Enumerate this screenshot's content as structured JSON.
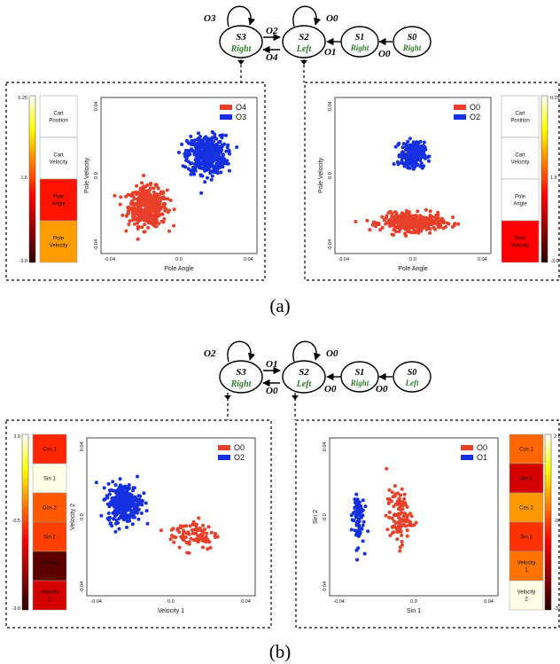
{
  "captions": {
    "a": "(a)",
    "b": "(b)"
  },
  "colors": {
    "action": "#2e7d2e",
    "red": "#e8402a",
    "blue": "#1530e0"
  },
  "fig_a": {
    "graph": {
      "s3": {
        "name": "S3",
        "action": "Right"
      },
      "s2": {
        "name": "S2",
        "action": "Left"
      },
      "s1": {
        "name": "S1",
        "action": "Right"
      },
      "s0": {
        "name": "S0",
        "action": "Right"
      },
      "self_s3": "O3",
      "self_s2": "O0",
      "s3_to_s2": "O2",
      "s2_to_s3": "O4",
      "s1_to_s2": "O1",
      "s0_to_s1": "O0"
    },
    "left_heatmap": {
      "labels": [
        "Cart\nPosition",
        "Cart\nVelocity",
        "Pole\nAngle",
        "Pole\nVelocity"
      ],
      "values": [
        0.25,
        0.25,
        -1.6,
        -0.9
      ],
      "colorbar": {
        "top": "0.25",
        "mid": "1.6",
        "bottom": "-3.0"
      }
    },
    "right_heatmap": {
      "labels": [
        "Cart\nPosition",
        "Cart\nVelocity",
        "Pole\nAngle",
        "Pole\nVelocity"
      ],
      "values": [
        0.8,
        0.25,
        0.65,
        -1.7
      ],
      "colorbar": {
        "top": "0.25",
        "mid": "1.6",
        "bottom": "-3.0"
      }
    }
  },
  "fig_b": {
    "graph": {
      "s3": {
        "name": "S3",
        "action": "Right"
      },
      "s2": {
        "name": "S2",
        "action": "Left"
      },
      "s1": {
        "name": "S1",
        "action": "Right"
      },
      "s0": {
        "name": "S0",
        "action": "Left"
      },
      "self_s3": "O2",
      "self_s2": "O0",
      "s3_to_s2": "O1",
      "s2_to_s3": "O0",
      "s1_to_s2": "O0",
      "s0_to_s1": "O0"
    },
    "left_heatmap": {
      "labels": [
        "Cos 1",
        "Sin 1",
        "Cos 2",
        "Sin 2",
        "Velocity\n1",
        "Velocity\n2"
      ],
      "values": [
        -0.7,
        1.9,
        -0.3,
        -0.5,
        -2.5,
        -1.4
      ],
      "colorbar": {
        "top": "2.0",
        "mid": "-0.5",
        "bottom": "-3.0"
      }
    },
    "right_heatmap": {
      "labels": [
        "Cos 1",
        "Sin 1",
        "Cos 2",
        "Sin 2",
        "Velocity\n1",
        "Velocity\n2"
      ],
      "values": [
        -0.2,
        -1.4,
        0.2,
        -0.6,
        -0.1,
        1.9
      ],
      "colorbar": {
        "top": "2.0",
        "mid": "-0.5",
        "bottom": "-3.0"
      }
    }
  },
  "chart_data": [
    {
      "type": "scatter",
      "panel": "a-left",
      "xlabel": "Pole Angle",
      "ylabel": "Pole Velocity",
      "xlim": [
        -0.045,
        0.045
      ],
      "ylim": [
        -0.045,
        0.045
      ],
      "xticks": [
        "-0.04",
        "0.0",
        "0.04"
      ],
      "yticks": [
        "0.04",
        "0.0",
        "-0.04"
      ],
      "legend_position": "top-right",
      "series": [
        {
          "name": "O4",
          "color": "red",
          "cluster": {
            "cx": -0.018,
            "cy": -0.018,
            "sx": 0.01,
            "sy": 0.01,
            "n": 480
          }
        },
        {
          "name": "O3",
          "color": "blue",
          "cluster": {
            "cx": 0.016,
            "cy": 0.012,
            "sx": 0.01,
            "sy": 0.01,
            "n": 480
          }
        }
      ]
    },
    {
      "type": "scatter",
      "panel": "a-right",
      "xlabel": "Pole Angle",
      "ylabel": "Pole Velocity",
      "xlim": [
        -0.045,
        0.045
      ],
      "ylim": [
        -0.045,
        0.045
      ],
      "xticks": [
        "-0.04",
        "0.0",
        "0.04"
      ],
      "yticks": [
        "0.04",
        "0.0",
        "-0.04"
      ],
      "legend_position": "top-right",
      "series": [
        {
          "name": "O0",
          "color": "red",
          "cluster": {
            "cx": 0.0,
            "cy": -0.027,
            "sx": 0.016,
            "sy": 0.0045,
            "n": 420
          }
        },
        {
          "name": "O2",
          "color": "blue",
          "cluster": {
            "cx": 0.0,
            "cy": 0.012,
            "sx": 0.006,
            "sy": 0.0065,
            "n": 260
          }
        }
      ]
    },
    {
      "type": "scatter",
      "panel": "b-left",
      "xlabel": "Velocity 1",
      "ylabel": "Velocity 2",
      "xlim": [
        -0.045,
        0.045
      ],
      "ylim": [
        -0.045,
        0.045
      ],
      "xticks": [
        "-0.04",
        "0.0",
        "0.04"
      ],
      "yticks": [
        "0.04",
        "0.0",
        "-0.04"
      ],
      "legend_position": "top-right",
      "series": [
        {
          "name": "O0",
          "color": "red",
          "cluster": {
            "cx": 0.012,
            "cy": -0.01,
            "sx": 0.012,
            "sy": 0.008,
            "n": 90
          }
        },
        {
          "name": "O2",
          "color": "blue",
          "cluster": {
            "cx": -0.025,
            "cy": 0.008,
            "sx": 0.008,
            "sy": 0.01,
            "n": 320
          }
        }
      ]
    },
    {
      "type": "scatter",
      "panel": "b-right",
      "xlabel": "Sin 1",
      "ylabel": "Sin 2",
      "xlim": [
        -0.045,
        0.045
      ],
      "ylim": [
        -0.045,
        0.045
      ],
      "xticks": [
        "-0.04",
        "0.0",
        "0.04"
      ],
      "yticks": [
        "0.04",
        "0.0",
        "-0.04"
      ],
      "legend_position": "top-right",
      "series": [
        {
          "name": "O0",
          "color": "red",
          "cluster": {
            "cx": -0.008,
            "cy": 0.0,
            "sx": 0.006,
            "sy": 0.014,
            "n": 110
          }
        },
        {
          "name": "O1",
          "color": "blue",
          "cluster": {
            "cx": -0.03,
            "cy": 0.0,
            "sx": 0.003,
            "sy": 0.015,
            "n": 80
          }
        }
      ]
    }
  ]
}
